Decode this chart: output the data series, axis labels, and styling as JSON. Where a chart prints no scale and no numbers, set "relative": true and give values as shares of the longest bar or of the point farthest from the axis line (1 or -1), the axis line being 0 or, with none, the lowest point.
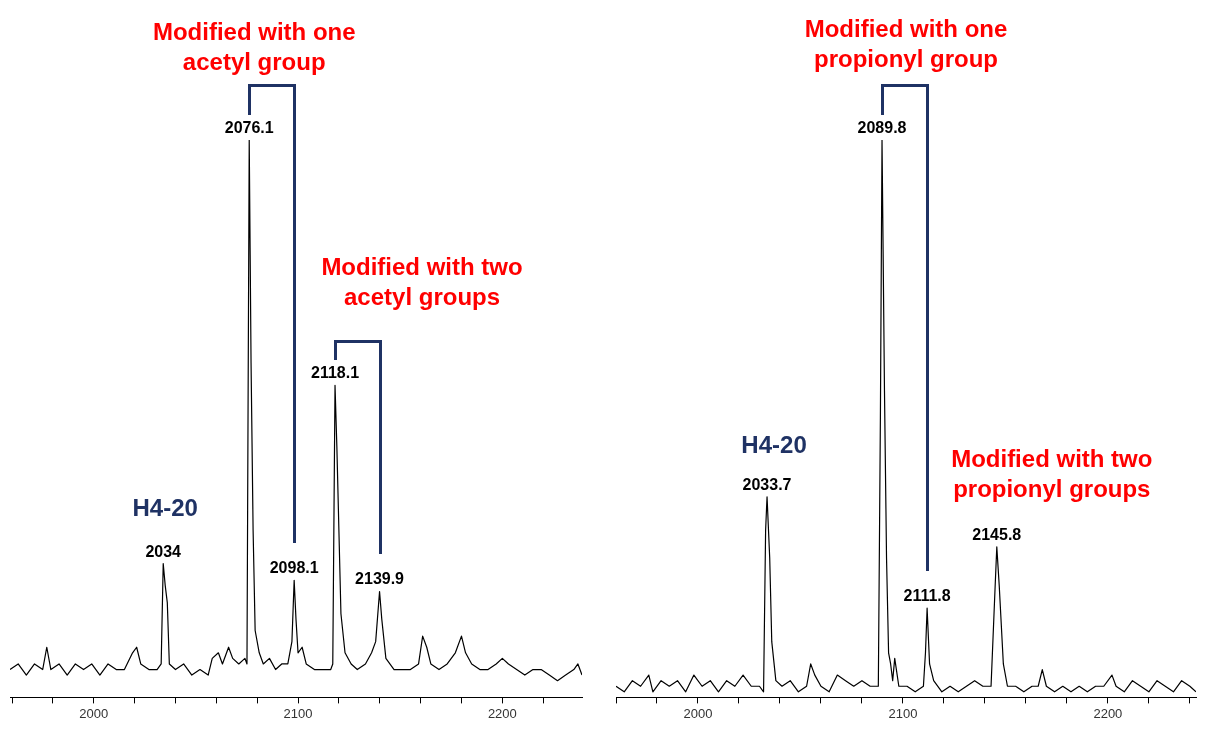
{
  "chart_data": [
    {
      "type": "line",
      "relative": true,
      "xlim": [
        1959,
        2239
      ],
      "xticks": [
        {
          "value": 1960,
          "label": null
        },
        {
          "value": 1980,
          "label": null
        },
        2000,
        {
          "value": 2020,
          "label": null
        },
        {
          "value": 2040,
          "label": null
        },
        {
          "value": 2060,
          "label": null
        },
        {
          "value": 2080,
          "label": null
        },
        2100,
        {
          "value": 2120,
          "label": null
        },
        {
          "value": 2140,
          "label": null
        },
        {
          "value": 2160,
          "label": null
        },
        {
          "value": 2180,
          "label": null
        },
        2200,
        {
          "value": 2220,
          "label": null
        }
      ],
      "series": [
        {
          "color": "#000000",
          "x": [
            1959,
            1963,
            1967,
            1971,
            1975,
            1977,
            1979,
            1983,
            1987,
            1991,
            1995,
            1999,
            2003,
            2007,
            2011,
            2015,
            2019,
            2021,
            2023,
            2027,
            2031,
            2033,
            2034,
            2035,
            2036,
            2037,
            2040,
            2044,
            2048,
            2052,
            2056,
            2058,
            2061,
            2063,
            2066,
            2068,
            2071,
            2074,
            2075,
            2076.1,
            2077,
            2078,
            2079,
            2081,
            2083,
            2086,
            2089,
            2092,
            2095,
            2097,
            2098.1,
            2099,
            2100,
            2102,
            2104,
            2108,
            2112,
            2116,
            2117,
            2118.1,
            2119,
            2120,
            2121,
            2123,
            2126,
            2129,
            2133,
            2136,
            2138,
            2139.9,
            2141,
            2143,
            2147,
            2151,
            2155,
            2159,
            2161,
            2163,
            2165,
            2169,
            2173,
            2177,
            2180,
            2182,
            2185,
            2189,
            2193,
            2197,
            2200,
            2203,
            2207,
            2211,
            2215,
            2219,
            2223,
            2227,
            2231,
            2235,
            2237,
            2239
          ],
          "values": [
            0.05,
            0.06,
            0.04,
            0.06,
            0.05,
            0.09,
            0.05,
            0.06,
            0.04,
            0.06,
            0.05,
            0.06,
            0.04,
            0.06,
            0.05,
            0.05,
            0.08,
            0.09,
            0.06,
            0.05,
            0.05,
            0.06,
            0.24,
            0.2,
            0.17,
            0.06,
            0.05,
            0.06,
            0.04,
            0.05,
            0.04,
            0.07,
            0.08,
            0.06,
            0.09,
            0.07,
            0.06,
            0.07,
            0.06,
            1.0,
            0.6,
            0.3,
            0.12,
            0.08,
            0.06,
            0.07,
            0.05,
            0.06,
            0.06,
            0.1,
            0.21,
            0.14,
            0.08,
            0.09,
            0.06,
            0.05,
            0.05,
            0.05,
            0.06,
            0.56,
            0.45,
            0.3,
            0.15,
            0.08,
            0.06,
            0.05,
            0.06,
            0.08,
            0.1,
            0.19,
            0.14,
            0.07,
            0.05,
            0.05,
            0.05,
            0.06,
            0.11,
            0.09,
            0.06,
            0.05,
            0.06,
            0.08,
            0.11,
            0.08,
            0.06,
            0.05,
            0.05,
            0.06,
            0.07,
            0.06,
            0.05,
            0.04,
            0.05,
            0.05,
            0.04,
            0.03,
            0.04,
            0.05,
            0.06,
            0.04
          ]
        }
      ],
      "annotations": [
        "Modified with one acetyl group",
        {
          "text": "2076.1",
          "x": 2076.1,
          "y": 1.0
        },
        {
          "text": "2098.1",
          "x": 2098.1,
          "y": 0.21
        },
        "Modified with two acetyl groups",
        {
          "text": "2118.1",
          "x": 2118.1,
          "y": 0.56
        },
        {
          "text": "2139.9",
          "x": 2139.9,
          "y": 0.19
        },
        "H4-20",
        {
          "text": "2034",
          "x": 2034,
          "y": 0.24
        }
      ]
    },
    {
      "type": "line",
      "relative": true,
      "xlim": [
        1960,
        2243
      ],
      "xticks": [
        {
          "value": 1960,
          "label": null
        },
        {
          "value": 1980,
          "label": null
        },
        2000,
        {
          "value": 2020,
          "label": null
        },
        {
          "value": 2040,
          "label": null
        },
        {
          "value": 2060,
          "label": null
        },
        {
          "value": 2080,
          "label": null
        },
        2100,
        {
          "value": 2120,
          "label": null
        },
        {
          "value": 2140,
          "label": null
        },
        {
          "value": 2160,
          "label": null
        },
        {
          "value": 2180,
          "label": null
        },
        2200,
        {
          "value": 2220,
          "label": null
        },
        {
          "value": 2240,
          "label": null
        }
      ],
      "series": [
        {
          "color": "#000000",
          "x": [
            1960,
            1964,
            1968,
            1972,
            1976,
            1978,
            1982,
            1986,
            1990,
            1994,
            1998,
            2002,
            2006,
            2010,
            2014,
            2018,
            2022,
            2026,
            2030,
            2032,
            2033,
            2033.7,
            2035,
            2036,
            2038,
            2041,
            2045,
            2049,
            2053,
            2055,
            2057,
            2060,
            2064,
            2068,
            2072,
            2076,
            2080,
            2084,
            2088,
            2089,
            2089.8,
            2091,
            2092,
            2093,
            2094,
            2095,
            2096,
            2098,
            2102,
            2106,
            2110,
            2111,
            2111.8,
            2113,
            2115,
            2119,
            2123,
            2127,
            2131,
            2135,
            2139,
            2143,
            2145,
            2145.8,
            2147,
            2149,
            2151,
            2155,
            2159,
            2163,
            2166,
            2168,
            2170,
            2174,
            2178,
            2182,
            2186,
            2190,
            2194,
            2198,
            2202,
            2204,
            2208,
            2212,
            2216,
            2220,
            2224,
            2228,
            2232,
            2236,
            2240,
            2243
          ],
          "values": [
            0.02,
            0.01,
            0.03,
            0.02,
            0.04,
            0.01,
            0.03,
            0.02,
            0.03,
            0.01,
            0.04,
            0.02,
            0.03,
            0.01,
            0.03,
            0.02,
            0.04,
            0.02,
            0.02,
            0.01,
            0.3,
            0.36,
            0.25,
            0.1,
            0.03,
            0.02,
            0.03,
            0.01,
            0.02,
            0.06,
            0.04,
            0.02,
            0.01,
            0.04,
            0.03,
            0.02,
            0.03,
            0.02,
            0.02,
            0.5,
            1.0,
            0.55,
            0.25,
            0.08,
            0.06,
            0.03,
            0.07,
            0.02,
            0.02,
            0.01,
            0.02,
            0.08,
            0.16,
            0.06,
            0.03,
            0.01,
            0.02,
            0.01,
            0.02,
            0.03,
            0.02,
            0.02,
            0.2,
            0.27,
            0.2,
            0.06,
            0.02,
            0.02,
            0.01,
            0.02,
            0.02,
            0.05,
            0.02,
            0.01,
            0.02,
            0.01,
            0.02,
            0.01,
            0.02,
            0.02,
            0.04,
            0.02,
            0.01,
            0.03,
            0.02,
            0.01,
            0.03,
            0.02,
            0.01,
            0.03,
            0.02,
            0.01
          ]
        }
      ],
      "annotations": [
        "Modified with one propionyl group",
        {
          "text": "2089.8",
          "x": 2089.8,
          "y": 1.0
        },
        {
          "text": "2111.8",
          "x": 2111.8,
          "y": 0.16
        },
        "Modified with two propionyl groups",
        {
          "text": "2145.8",
          "x": 2145.8,
          "y": 0.27
        },
        "H4-20",
        {
          "text": "2033.7",
          "x": 2033.7,
          "y": 0.36
        }
      ]
    }
  ]
}
